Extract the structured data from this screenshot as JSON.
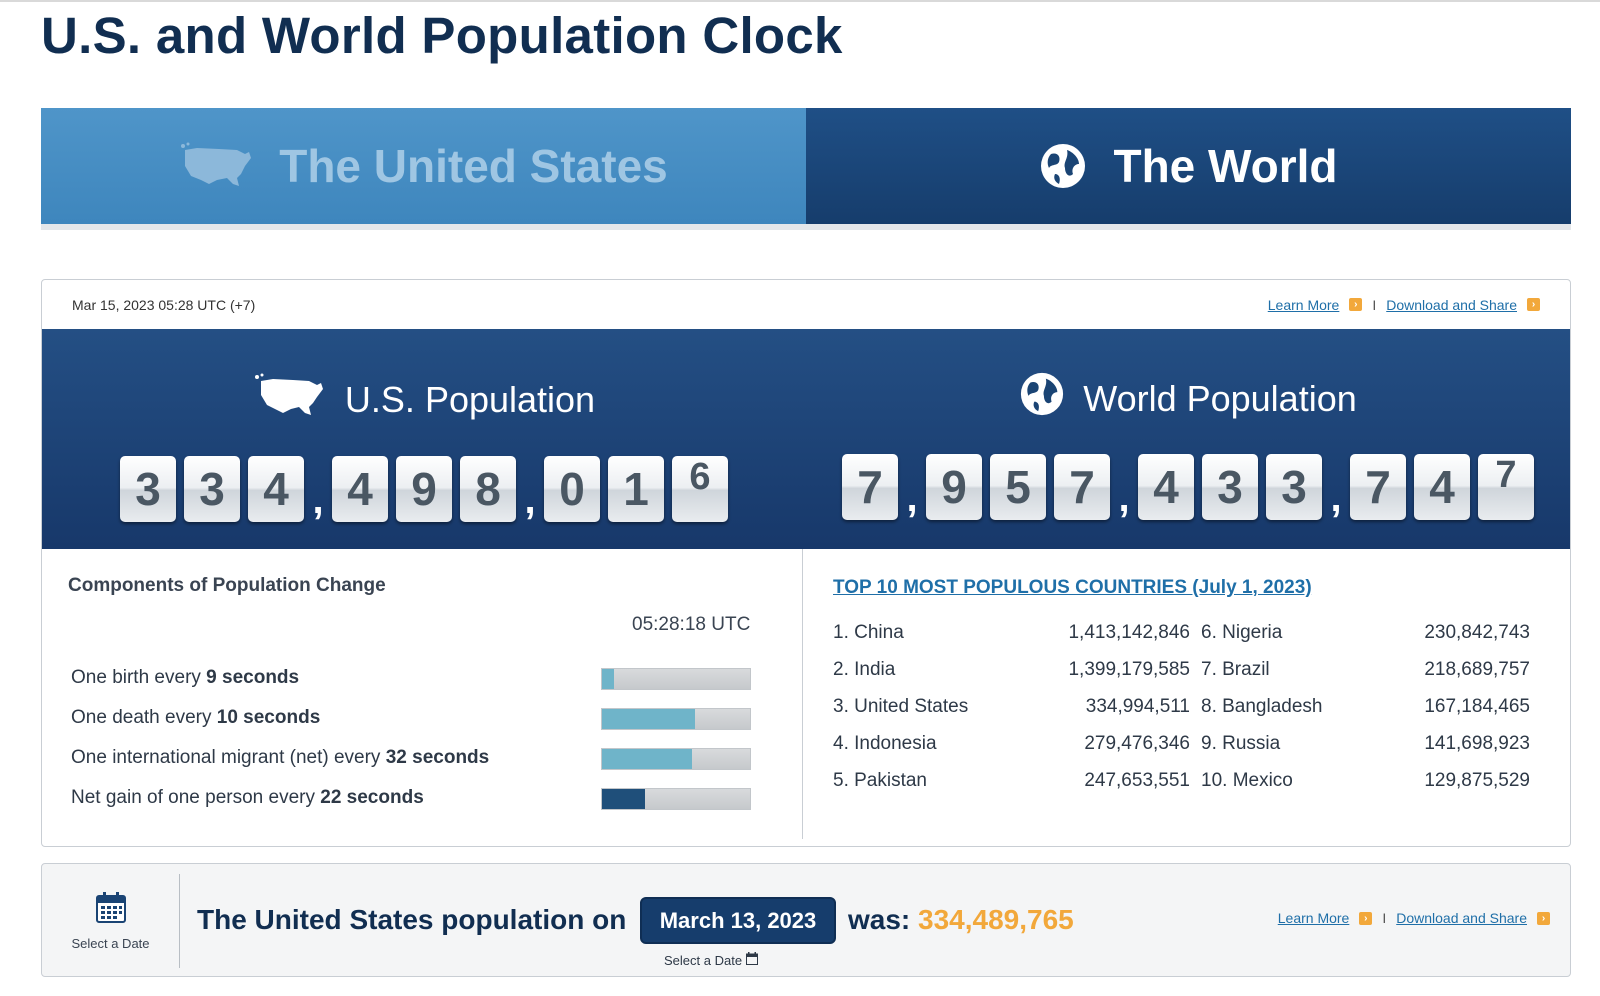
{
  "page": {
    "title": "U.S. and World Population Clock"
  },
  "tabs": [
    {
      "label": "The United States",
      "icon": "us-map-icon",
      "active": false
    },
    {
      "label": "The World",
      "icon": "globe-icon",
      "active": true
    }
  ],
  "panel": {
    "timestamp": "Mar 15, 2023 05:28 UTC (+7)",
    "learn_more": "Learn More",
    "separator": "I",
    "download_share": "Download and Share"
  },
  "us_population": {
    "label": "U.S. Population",
    "digits": [
      "3",
      "3",
      "4",
      ",",
      "4",
      "9",
      "8",
      ",",
      "0",
      "1",
      "6"
    ],
    "rolling_last": true
  },
  "world_population": {
    "label": "World Population",
    "digits": [
      "7",
      ",",
      "9",
      "5",
      "7",
      ",",
      "4",
      "3",
      "3",
      ",",
      "7",
      "4",
      "7"
    ],
    "rolling_last": true
  },
  "components": {
    "title": "Components of Population Change",
    "time": "05:28:18 UTC",
    "rows": [
      {
        "prefix": "One birth every ",
        "value": "9 seconds",
        "progress": 0.08,
        "color": "#6fb4c9"
      },
      {
        "prefix": "One death every ",
        "value": "10 seconds",
        "progress": 0.63,
        "color": "#6fb4c9"
      },
      {
        "prefix": "One international migrant (net) every ",
        "value": "32 seconds",
        "progress": 0.61,
        "color": "#6fb4c9"
      },
      {
        "prefix": "Net gain of one person every ",
        "value": "22 seconds",
        "progress": 0.29,
        "color": "#1f4f7a"
      }
    ]
  },
  "top10": {
    "title": "TOP 10 MOST POPULOUS COUNTRIES (July 1, 2023)",
    "countries": [
      {
        "name": "1. China",
        "value": "1,413,142,846"
      },
      {
        "name": "2. India",
        "value": "1,399,179,585"
      },
      {
        "name": "3. United States",
        "value": "334,994,511"
      },
      {
        "name": "4. Indonesia",
        "value": "279,476,346"
      },
      {
        "name": "5. Pakistan",
        "value": "247,653,551"
      },
      {
        "name": "6. Nigeria",
        "value": "230,842,743"
      },
      {
        "name": "7. Brazil",
        "value": "218,689,757"
      },
      {
        "name": "8. Bangladesh",
        "value": "167,184,465"
      },
      {
        "name": "9. Russia",
        "value": "141,698,923"
      },
      {
        "name": "10. Mexico",
        "value": "129,875,529"
      }
    ]
  },
  "bottom": {
    "select_date_label": "Select a Date",
    "sentence": "The United States population on",
    "date": "March 13, 2023",
    "was_label": "was:",
    "was_value": "334,489,765",
    "select_date_under": "Select a Date",
    "learn_more": "Learn More",
    "separator": "I",
    "download_share": "Download and Share"
  },
  "colors": {
    "brand_navy": "#112e51",
    "accent_orange": "#f2a83b",
    "link_blue": "#1f6fa8"
  }
}
